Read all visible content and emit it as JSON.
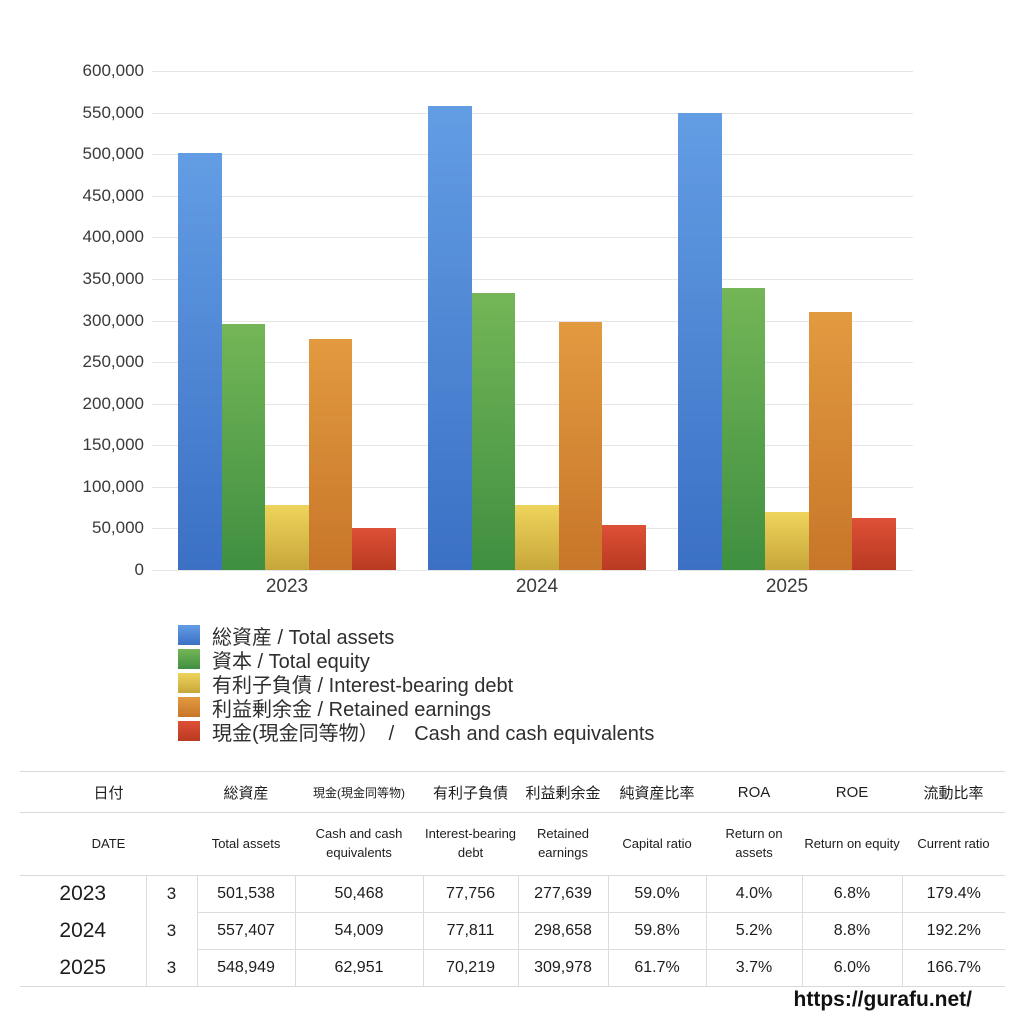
{
  "chart_data": {
    "type": "bar",
    "categories": [
      "2023",
      "2024",
      "2025"
    ],
    "series": [
      {
        "name": "総資産 / Total assets",
        "values": [
          501538,
          557407,
          548949
        ],
        "color_top": "#639de4",
        "color_bottom": "#3b70c4"
      },
      {
        "name": "資本 / Total equity",
        "values": [
          295907,
          333330,
          338702
        ],
        "color_top": "#74b657",
        "color_bottom": "#3f8f41"
      },
      {
        "name": "有利子負債 / Interest-bearing debt",
        "values": [
          77756,
          77811,
          70219
        ],
        "color_top": "#eed45c",
        "color_bottom": "#c7a63a"
      },
      {
        "name": "利益剰余金 / Retained earnings",
        "values": [
          277639,
          298658,
          309978
        ],
        "color_top": "#e29a40",
        "color_bottom": "#c87629"
      },
      {
        "name": "現金(現金同等物）　/　Cash and cash equivalents",
        "values": [
          50468,
          54009,
          62951
        ],
        "color_top": "#dd5036",
        "color_bottom": "#b93a22"
      }
    ],
    "title": "",
    "xlabel": "",
    "ylabel": "",
    "ylim": [
      0,
      600000
    ],
    "ytick_step": 50000,
    "grid": true,
    "legend_position": "below-left"
  },
  "table": {
    "headers_ja": [
      "日付",
      "総資産",
      "現金(現金同等物)",
      "有利子負債",
      "利益剰余金",
      "純資産比率",
      "ROA",
      "ROE",
      "流動比率"
    ],
    "headers_en": [
      "DATE",
      "Total assets",
      "Cash and cash equivalents",
      "Interest-bearing debt",
      "Retained earnings",
      "Capital ratio",
      "Return on assets",
      "Return on equity",
      "Current ratio"
    ],
    "rows": [
      {
        "year": "2023",
        "month": "3",
        "cells": [
          "501,538",
          "50,468",
          "77,756",
          "277,639",
          "59.0%",
          "4.0%",
          "6.8%",
          "179.4%"
        ]
      },
      {
        "year": "2024",
        "month": "3",
        "cells": [
          "557,407",
          "54,009",
          "77,811",
          "298,658",
          "59.8%",
          "5.2%",
          "8.8%",
          "192.2%"
        ]
      },
      {
        "year": "2025",
        "month": "3",
        "cells": [
          "548,949",
          "62,951",
          "70,219",
          "309,978",
          "61.7%",
          "3.7%",
          "6.0%",
          "166.7%"
        ]
      }
    ]
  },
  "footer": {
    "url": "https://gurafu.net/"
  }
}
